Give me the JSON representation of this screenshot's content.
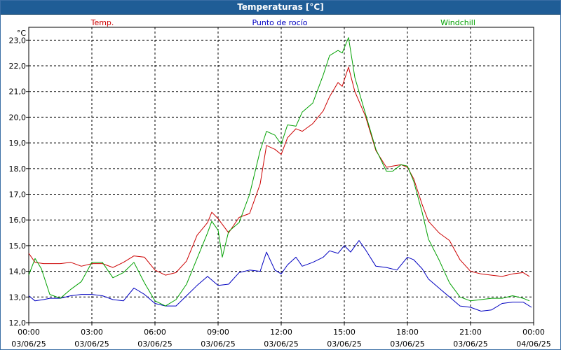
{
  "window": {
    "title": "Temperaturas [°C]"
  },
  "chart_data": {
    "type": "line",
    "title": "Temperaturas [°C]",
    "ylabel": "°C",
    "xlabel": "",
    "ylim": [
      12.0,
      23.5
    ],
    "xlim": [
      0,
      24
    ],
    "yticks": [
      12.0,
      13.0,
      14.0,
      15.0,
      16.0,
      17.0,
      18.0,
      19.0,
      20.0,
      21.0,
      22.0,
      23.0
    ],
    "xticks": [
      {
        "hour": 0,
        "time": "00:00",
        "date": "03/06/25"
      },
      {
        "hour": 3,
        "time": "03:00",
        "date": "03/06/25"
      },
      {
        "hour": 6,
        "time": "06:00",
        "date": "03/06/25"
      },
      {
        "hour": 9,
        "time": "09:00",
        "date": "03/06/25"
      },
      {
        "hour": 12,
        "time": "12:00",
        "date": "03/06/25"
      },
      {
        "hour": 15,
        "time": "15:00",
        "date": "03/06/25"
      },
      {
        "hour": 18,
        "time": "18:00",
        "date": "03/06/25"
      },
      {
        "hour": 21,
        "time": "21:00",
        "date": "03/06/25"
      },
      {
        "hour": 24,
        "time": "00:00",
        "date": "04/06/25"
      }
    ],
    "grid": true,
    "series": [
      {
        "name": "Temp.",
        "color": "#cc0000",
        "x": [
          0,
          0.3,
          0.7,
          1,
          1.5,
          2,
          2.5,
          3,
          3.5,
          4,
          4.5,
          5,
          5.5,
          6,
          6.5,
          7,
          7.5,
          8,
          8.5,
          8.7,
          9,
          9.5,
          10,
          10.5,
          11,
          11.3,
          11.7,
          12,
          12.3,
          12.7,
          13,
          13.5,
          14,
          14.3,
          14.7,
          14.9,
          15.2,
          15.5,
          16,
          16.5,
          17,
          17.3,
          17.7,
          18,
          18.3,
          18.7,
          19,
          19.5,
          20,
          20.5,
          21,
          21.5,
          22,
          22.5,
          23,
          23.5,
          23.8
        ],
        "values": [
          14.7,
          14.35,
          14.3,
          14.3,
          14.3,
          14.35,
          14.2,
          14.3,
          14.3,
          14.15,
          14.35,
          14.6,
          14.55,
          14.05,
          13.85,
          13.95,
          14.4,
          15.4,
          15.9,
          16.3,
          16.05,
          15.5,
          16.1,
          16.25,
          17.4,
          18.9,
          18.75,
          18.55,
          19.2,
          19.55,
          19.45,
          19.75,
          20.25,
          20.8,
          21.35,
          21.2,
          21.95,
          21.0,
          20.05,
          18.7,
          18.05,
          18.1,
          18.15,
          18.05,
          17.6,
          16.6,
          15.95,
          15.5,
          15.2,
          14.45,
          14.0,
          13.9,
          13.85,
          13.8,
          13.9,
          13.95,
          13.8
        ]
      },
      {
        "name": "Punto de rocío",
        "color": "#0000c0",
        "x": [
          0,
          0.3,
          0.7,
          1,
          1.5,
          2,
          2.5,
          3,
          3.5,
          4,
          4.5,
          5,
          5.5,
          6,
          6.5,
          7,
          7.5,
          8,
          8.5,
          9,
          9.5,
          10,
          10.5,
          11,
          11.3,
          11.7,
          12,
          12.3,
          12.7,
          13,
          13.5,
          14,
          14.3,
          14.7,
          15,
          15.3,
          15.7,
          16,
          16.5,
          17,
          17.5,
          18,
          18.3,
          18.7,
          19,
          19.5,
          20,
          20.5,
          21,
          21.5,
          22,
          22.5,
          23,
          23.5,
          23.9
        ],
        "values": [
          13.05,
          12.85,
          12.9,
          12.95,
          12.95,
          13.05,
          13.1,
          13.1,
          13.05,
          12.9,
          12.85,
          13.35,
          13.1,
          12.75,
          12.65,
          12.65,
          13.05,
          13.45,
          13.8,
          13.45,
          13.5,
          13.95,
          14.05,
          14.0,
          14.75,
          14.05,
          13.9,
          14.25,
          14.55,
          14.2,
          14.35,
          14.55,
          14.8,
          14.7,
          15.0,
          14.75,
          15.2,
          14.85,
          14.2,
          14.15,
          14.05,
          14.55,
          14.45,
          14.1,
          13.7,
          13.35,
          13.0,
          12.65,
          12.6,
          12.45,
          12.5,
          12.75,
          12.8,
          12.8,
          12.6
        ]
      },
      {
        "name": "Windchill",
        "color": "#00a000",
        "x": [
          0,
          0.3,
          0.6,
          1,
          1.5,
          2,
          2.5,
          3,
          3.5,
          4,
          4.5,
          5,
          5.5,
          6,
          6.5,
          7,
          7.5,
          8,
          8.5,
          8.7,
          9,
          9.2,
          9.5,
          10,
          10.5,
          11,
          11.3,
          11.7,
          12,
          12.3,
          12.7,
          13,
          13.5,
          14,
          14.3,
          14.7,
          14.9,
          15.2,
          15.5,
          16,
          16.5,
          17,
          17.3,
          17.7,
          18,
          18.3,
          18.7,
          19,
          19.5,
          20,
          20.5,
          21,
          21.5,
          22,
          22.5,
          23,
          23.5,
          23.8
        ],
        "values": [
          13.85,
          14.5,
          14.1,
          13.1,
          12.95,
          13.3,
          13.6,
          14.35,
          14.35,
          13.75,
          13.95,
          14.35,
          13.55,
          12.85,
          12.65,
          12.9,
          13.5,
          14.5,
          15.5,
          15.95,
          15.6,
          14.55,
          15.55,
          15.9,
          17.0,
          18.7,
          19.45,
          19.3,
          18.95,
          19.7,
          19.65,
          20.2,
          20.55,
          21.65,
          22.4,
          22.6,
          22.5,
          23.1,
          21.55,
          20.15,
          18.75,
          17.9,
          17.9,
          18.15,
          18.1,
          17.5,
          16.3,
          15.25,
          14.45,
          13.55,
          13.0,
          12.85,
          12.9,
          12.95,
          12.95,
          13.05,
          12.95,
          12.85
        ]
      }
    ]
  }
}
